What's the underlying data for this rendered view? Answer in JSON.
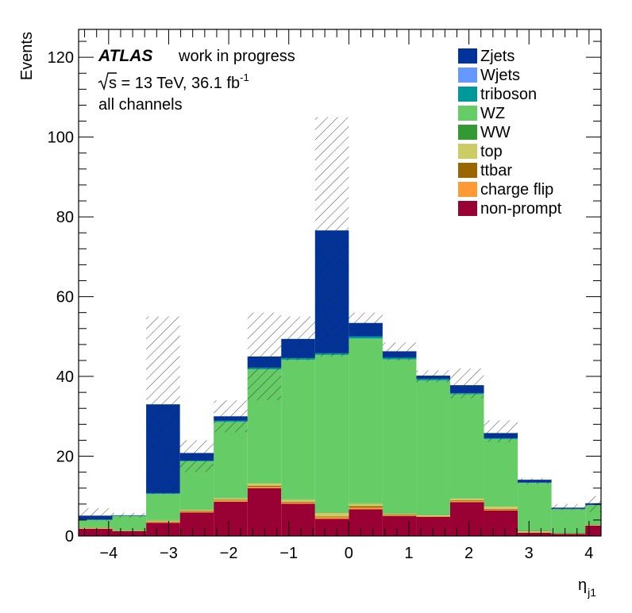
{
  "chart_data": {
    "type": "bar",
    "stacked": true,
    "x_bin_edges": [
      -4.5,
      -3.9375,
      -3.375,
      -2.8125,
      -2.25,
      -1.6875,
      -1.125,
      -0.5625,
      0.0,
      0.5625,
      1.125,
      1.6875,
      2.25,
      2.8125,
      3.375,
      3.9375,
      4.5
    ],
    "xlim": [
      -4.5,
      4.2
    ],
    "ylim": [
      0,
      127
    ],
    "xticks": [
      "−4",
      "−3",
      "−2",
      "−1",
      "0",
      "1",
      "2",
      "3",
      "4"
    ],
    "xtick_values": [
      -4,
      -3,
      -2,
      -1,
      0,
      1,
      2,
      3,
      4
    ],
    "yticks": [
      "0",
      "20",
      "40",
      "60",
      "80",
      "100",
      "120"
    ],
    "ytick_values": [
      0,
      20,
      40,
      60,
      80,
      100,
      120
    ],
    "xlabel": "η",
    "xlabel_sub": "j1",
    "ylabel": "Events",
    "grid": false,
    "legend_position": "top-right",
    "series": [
      {
        "name": "non-prompt",
        "color": "#990033",
        "values": [
          1.8,
          1.2,
          3.3,
          5.9,
          8.6,
          12.0,
          8.1,
          4.3,
          6.7,
          5.0,
          4.8,
          8.5,
          6.4,
          0.8,
          0.5,
          2.6
        ]
      },
      {
        "name": "charge flip",
        "color": "#ff9933",
        "values": [
          0.1,
          0.1,
          0.2,
          0.2,
          0.3,
          0.3,
          0.3,
          0.4,
          0.4,
          0.2,
          0.2,
          0.3,
          0.2,
          0.1,
          0.1,
          0.1
        ]
      },
      {
        "name": "ttbar",
        "color": "#996600",
        "values": [
          0.0,
          0.0,
          0.1,
          0.2,
          0.2,
          0.3,
          0.2,
          0.2,
          0.4,
          0.2,
          0.0,
          0.2,
          0.2,
          0.0,
          0.0,
          0.0
        ]
      },
      {
        "name": "top",
        "color": "#cccc66",
        "values": [
          0.2,
          0.0,
          0.3,
          0.3,
          0.4,
          0.6,
          0.5,
          0.9,
          0.6,
          0.2,
          0.2,
          0.4,
          0.6,
          0.3,
          0.0,
          0.1
        ]
      },
      {
        "name": "WW",
        "color": "#339933",
        "values": [
          0.1,
          0.0,
          0.1,
          0.1,
          0.1,
          0.1,
          0.1,
          0.1,
          0.1,
          0.1,
          0.1,
          0.1,
          0.1,
          0.1,
          0.1,
          0.1
        ]
      },
      {
        "name": "WZ",
        "color": "#66cc66",
        "values": [
          1.8,
          3.7,
          6.5,
          12.0,
          19.0,
          28.5,
          35.0,
          39.5,
          41.3,
          38.6,
          33.7,
          26.0,
          16.8,
          12.0,
          6.0,
          4.8
        ]
      },
      {
        "name": "triboson",
        "color": "#009999",
        "values": [
          0.1,
          0.1,
          0.2,
          0.2,
          0.3,
          0.4,
          0.4,
          0.4,
          0.5,
          0.4,
          0.4,
          0.3,
          0.2,
          0.1,
          0.1,
          0.1
        ]
      },
      {
        "name": "Wjets",
        "color": "#6699ff",
        "values": [
          0.0,
          0.0,
          0.0,
          0.0,
          0.0,
          0.0,
          0.0,
          0.0,
          0.0,
          0.0,
          0.0,
          0.0,
          0.0,
          0.0,
          0.0,
          0.0
        ]
      },
      {
        "name": "Zjets",
        "color": "#003399",
        "values": [
          1.0,
          0.1,
          22.3,
          1.9,
          1.1,
          2.8,
          4.8,
          30.8,
          3.4,
          1.6,
          0.8,
          2.0,
          1.3,
          0.7,
          0.3,
          0.4
        ]
      }
    ],
    "uncertainty_band": {
      "style": "hatched",
      "low": [
        3.9,
        4.6,
        10.5,
        16.0,
        26.0,
        34.0,
        44.0,
        45.0,
        50.5,
        44.0,
        38.5,
        34.5,
        23.5,
        13.0,
        6.5,
        6.0
      ],
      "high": [
        7.0,
        5.8,
        55.0,
        24.0,
        34.0,
        56.0,
        55.0,
        105.0,
        56.0,
        48.5,
        41.5,
        42.0,
        29.0,
        14.5,
        8.0,
        10.0
      ]
    }
  },
  "annotations": {
    "atlas": "ATLAS",
    "status": "work in progress",
    "energy_prefix": "s = 13 TeV, 36.1 fb",
    "energy_sup": "-1",
    "channels": "all channels"
  },
  "legend": [
    {
      "name": "Zjets",
      "color": "#003399"
    },
    {
      "name": "Wjets",
      "color": "#6699ff"
    },
    {
      "name": "triboson",
      "color": "#009999"
    },
    {
      "name": "WZ",
      "color": "#66cc66"
    },
    {
      "name": "WW",
      "color": "#339933"
    },
    {
      "name": "top",
      "color": "#cccc66"
    },
    {
      "name": "ttbar",
      "color": "#996600"
    },
    {
      "name": "charge flip",
      "color": "#ff9933"
    },
    {
      "name": "non-prompt",
      "color": "#990033"
    }
  ]
}
